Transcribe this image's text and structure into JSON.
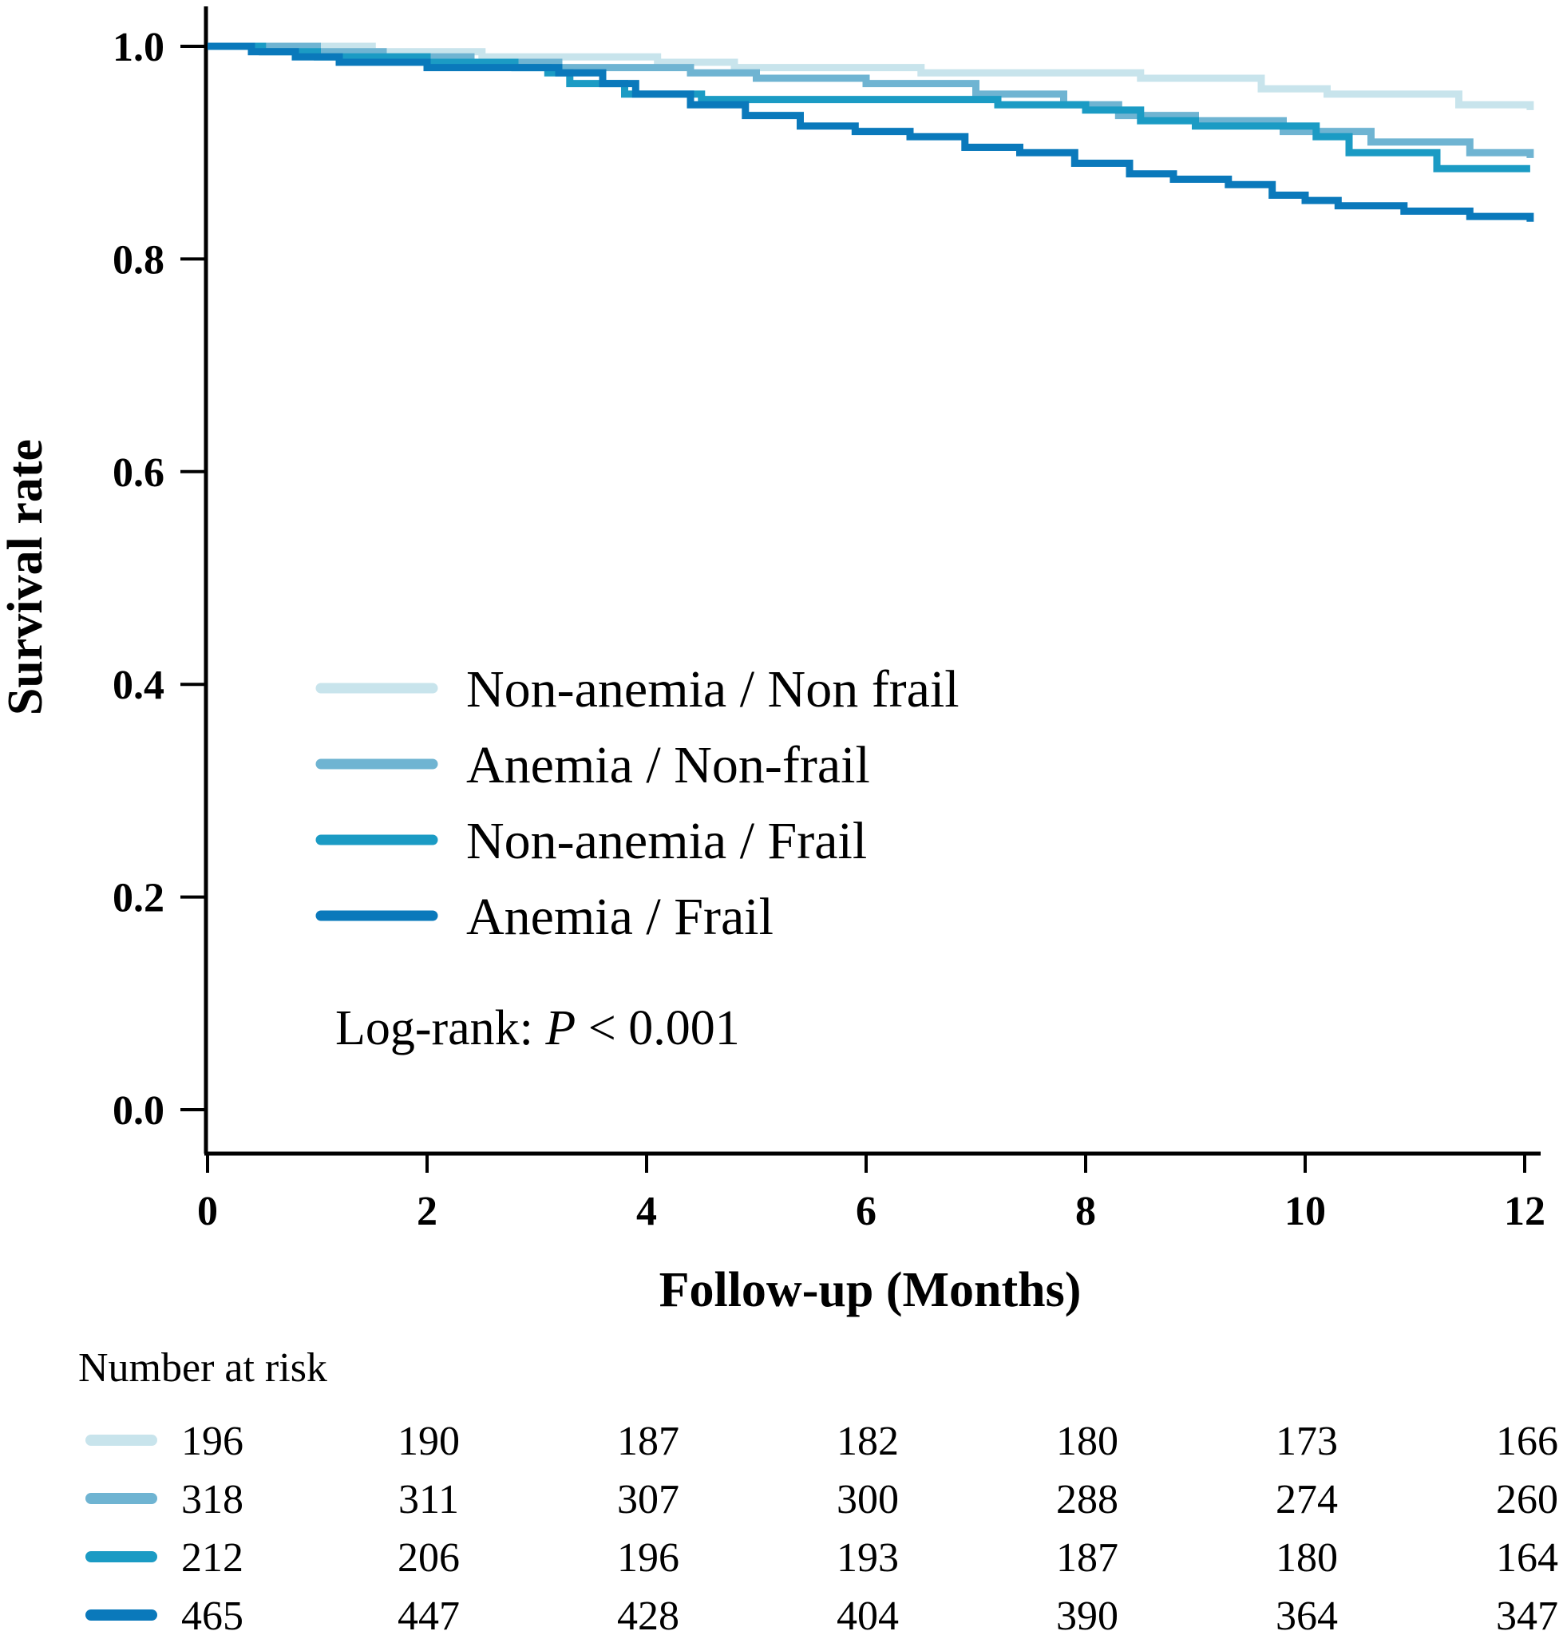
{
  "chart_data": {
    "type": "line",
    "subtype": "kaplan-meier",
    "title": "",
    "xlabel": "Follow-up (Months)",
    "ylabel": "Survival rate",
    "xlim": [
      0,
      12
    ],
    "ylim": [
      0,
      1
    ],
    "xticks": [
      0,
      2,
      4,
      6,
      8,
      10,
      12
    ],
    "yticks": [
      0.0,
      0.2,
      0.4,
      0.6,
      0.8,
      1.0
    ],
    "ytick_labels": [
      "0.0",
      "0.2",
      "0.4",
      "0.6",
      "0.8",
      "1.0"
    ],
    "grid": false,
    "legend_position": "center-left",
    "annotation": {
      "prefix": "Log-rank: ",
      "italic": "P",
      "suffix": " < 0.001"
    },
    "series": [
      {
        "name": "Non-anemia / Non frail",
        "color": "#c8e4ec",
        "x": [
          0,
          1.5,
          2.5,
          4.1,
          4.8,
          6.5,
          7.7,
          8.5,
          9.6,
          10.2,
          11.4,
          12.05
        ],
        "y": [
          1.0,
          0.995,
          0.99,
          0.985,
          0.98,
          0.975,
          0.975,
          0.97,
          0.96,
          0.955,
          0.945,
          0.94
        ]
      },
      {
        "name": "Anemia / Non-frail",
        "color": "#6fb4d2",
        "x": [
          0,
          1.0,
          1.6,
          2.4,
          3.2,
          4.4,
          5.0,
          6.0,
          7.0,
          7.8,
          8.3,
          9.0,
          9.8,
          10.6,
          11.5,
          12.05
        ],
        "y": [
          1.0,
          0.995,
          0.99,
          0.985,
          0.98,
          0.975,
          0.97,
          0.965,
          0.955,
          0.945,
          0.935,
          0.93,
          0.92,
          0.91,
          0.9,
          0.895
        ]
      },
      {
        "name": "Non-anemia / Frail",
        "color": "#1b9bc4",
        "x": [
          0,
          0.5,
          1.0,
          2.0,
          2.8,
          3.1,
          3.3,
          3.8,
          4.5,
          7.2,
          8.0,
          8.5,
          9.0,
          10.1,
          10.4,
          11.2,
          12.05
        ],
        "y": [
          1.0,
          0.995,
          0.99,
          0.985,
          0.98,
          0.975,
          0.965,
          0.955,
          0.95,
          0.945,
          0.94,
          0.93,
          0.925,
          0.915,
          0.9,
          0.885,
          0.885
        ]
      },
      {
        "name": "Anemia / Frail",
        "color": "#0a79bb",
        "x": [
          0,
          0.4,
          0.8,
          1.2,
          2.0,
          3.2,
          3.6,
          3.9,
          4.4,
          4.9,
          5.4,
          5.9,
          6.4,
          6.9,
          7.4,
          7.9,
          8.4,
          8.8,
          9.3,
          9.7,
          10.0,
          10.3,
          10.9,
          11.5,
          12.05
        ],
        "y": [
          1.0,
          0.995,
          0.99,
          0.985,
          0.98,
          0.975,
          0.965,
          0.955,
          0.945,
          0.935,
          0.925,
          0.92,
          0.915,
          0.905,
          0.9,
          0.89,
          0.88,
          0.875,
          0.87,
          0.86,
          0.855,
          0.85,
          0.845,
          0.84,
          0.835
        ]
      }
    ]
  },
  "risk_table": {
    "title": "Number at risk",
    "rows": [
      {
        "color": "#c8e4ec",
        "values": [
          "196",
          "190",
          "187",
          "182",
          "180",
          "173",
          "166"
        ]
      },
      {
        "color": "#6fb4d2",
        "values": [
          "318",
          "311",
          "307",
          "300",
          "288",
          "274",
          "260"
        ]
      },
      {
        "color": "#1b9bc4",
        "values": [
          "212",
          "206",
          "196",
          "193",
          "187",
          "180",
          "164"
        ]
      },
      {
        "color": "#0a79bb",
        "values": [
          "465",
          "447",
          "428",
          "404",
          "390",
          "364",
          "347"
        ]
      }
    ]
  }
}
